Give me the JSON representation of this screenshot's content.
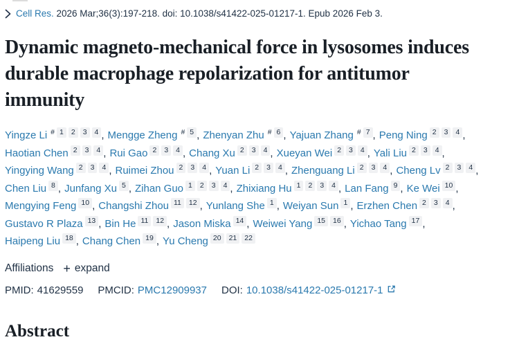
{
  "citation": {
    "journal_link": "Cell Res.",
    "rest": " 2026 Mar;36(3):197-218. doi: 10.1038/s41422-025-01217-1. Epub 2026 Feb 3."
  },
  "title": "Dynamic magneto-mechanical force in lysosomes induces durable macrophage repolarization for antitumor immunity",
  "authors": [
    {
      "name": "Yingze Li",
      "sups": [
        "#",
        "1",
        "2",
        "3",
        "4"
      ]
    },
    {
      "name": "Mengge Zheng",
      "sups": [
        "#",
        "5"
      ]
    },
    {
      "name": "Zhenyan Zhu",
      "sups": [
        "#",
        "6"
      ]
    },
    {
      "name": "Yajuan Zhang",
      "sups": [
        "#",
        "7"
      ]
    },
    {
      "name": "Peng Ning",
      "sups": [
        "2",
        "3",
        "4"
      ]
    },
    {
      "name": "Haotian Chen",
      "sups": [
        "2",
        "3",
        "4"
      ]
    },
    {
      "name": "Rui Gao",
      "sups": [
        "2",
        "3",
        "4"
      ]
    },
    {
      "name": "Chang Xu",
      "sups": [
        "2",
        "3",
        "4"
      ]
    },
    {
      "name": "Xueyan Wei",
      "sups": [
        "2",
        "3",
        "4"
      ]
    },
    {
      "name": "Yali Liu",
      "sups": [
        "2",
        "3",
        "4"
      ]
    },
    {
      "name": "Yingying Wang",
      "sups": [
        "2",
        "3",
        "4"
      ]
    },
    {
      "name": "Ruimei Zhou",
      "sups": [
        "2",
        "3",
        "4"
      ]
    },
    {
      "name": "Yuan Li",
      "sups": [
        "2",
        "3",
        "4"
      ]
    },
    {
      "name": "Zhenguang Li",
      "sups": [
        "2",
        "3",
        "4"
      ]
    },
    {
      "name": "Cheng Lv",
      "sups": [
        "2",
        "3",
        "4"
      ]
    },
    {
      "name": "Chen Liu",
      "sups": [
        "8"
      ]
    },
    {
      "name": "Junfang Xu",
      "sups": [
        "5"
      ]
    },
    {
      "name": "Zihan Guo",
      "sups": [
        "1",
        "2",
        "3",
        "4"
      ]
    },
    {
      "name": "Zhixiang Hu",
      "sups": [
        "1",
        "2",
        "3",
        "4"
      ]
    },
    {
      "name": "Lan Fang",
      "sups": [
        "9"
      ]
    },
    {
      "name": "Ke Wei",
      "sups": [
        "10"
      ]
    },
    {
      "name": "Mengying Feng",
      "sups": [
        "10"
      ]
    },
    {
      "name": "Changshi Zhou",
      "sups": [
        "11",
        "12"
      ]
    },
    {
      "name": "Yunlang She",
      "sups": [
        "1"
      ]
    },
    {
      "name": "Weiyan Sun",
      "sups": [
        "1"
      ]
    },
    {
      "name": "Erzhen Chen",
      "sups": [
        "2",
        "3",
        "4"
      ]
    },
    {
      "name": "Gustavo R Plaza",
      "sups": [
        "13"
      ]
    },
    {
      "name": "Bin He",
      "sups": [
        "11",
        "12"
      ]
    },
    {
      "name": "Jason Miska",
      "sups": [
        "14"
      ]
    },
    {
      "name": "Weiwei Yang",
      "sups": [
        "15",
        "16"
      ]
    },
    {
      "name": "Yichao Tang",
      "sups": [
        "17"
      ]
    },
    {
      "name": "Haipeng Liu",
      "sups": [
        "18"
      ]
    },
    {
      "name": "Chang Chen",
      "sups": [
        "19"
      ]
    },
    {
      "name": "Yu Cheng",
      "sups": [
        "20",
        "21",
        "22"
      ]
    }
  ],
  "affiliations": {
    "label": "Affiliations",
    "expand_label": "expand",
    "plus": "+"
  },
  "ids": {
    "pmid_label": "PMID:",
    "pmid_value": "41629559",
    "pmcid_label": "PMCID:",
    "pmcid_value": "PMC12909937",
    "doi_label": "DOI:",
    "doi_value": "10.1038/s41422-025-01217-1"
  },
  "abstract": {
    "heading": "Abstract",
    "clipped_text": "Dynamic magneto-mechanical force in lysosomes induces durable macrophage repolarization for antitumor immunity"
  },
  "icons": {
    "chevron": "chevron-right-icon",
    "plus": "plus-icon",
    "external_link": "external-link-icon"
  },
  "colors": {
    "link_blue": "#2a79ae",
    "body_text": "#1f3044",
    "title_text": "#191f26",
    "sup_box_bg": "#f0f1f3"
  }
}
